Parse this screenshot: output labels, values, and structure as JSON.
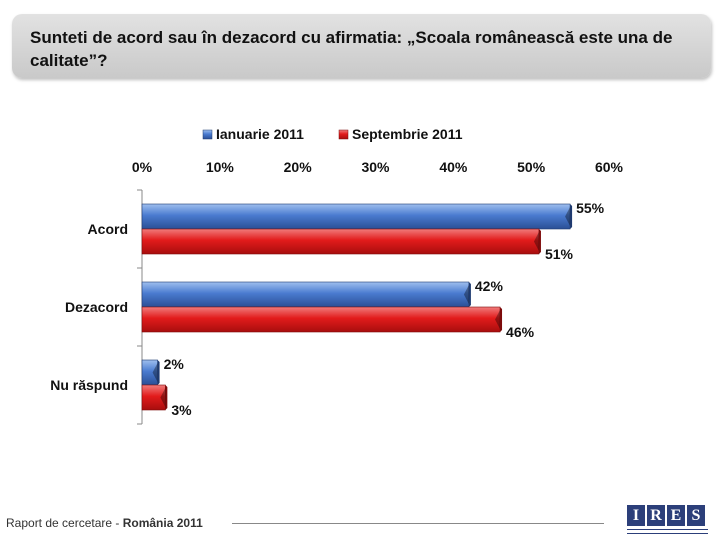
{
  "slide": {
    "title": "Sunteti de acord sau în dezacord cu afirmatia: „Scoala românească este una de calitate”?"
  },
  "chart_data": {
    "type": "bar",
    "orientation": "horizontal",
    "categories": [
      "Acord",
      "Dezacord",
      "Nu răspund"
    ],
    "series": [
      {
        "name": "Ianuarie 2011",
        "values": [
          55,
          42,
          2
        ],
        "labels": [
          "55%",
          "42%",
          "2%"
        ],
        "color": "#4472c4"
      },
      {
        "name": "Septembrie 2011",
        "values": [
          51,
          46,
          3
        ],
        "labels": [
          "51%",
          "46%",
          "3%"
        ],
        "color": "#e31d1d"
      }
    ],
    "xlim": [
      0,
      60
    ],
    "xticks": [
      "0%",
      "10%",
      "20%",
      "30%",
      "40%",
      "50%",
      "60%"
    ],
    "legend_position": "top",
    "grid": false
  },
  "footer": {
    "prefix": "Raport de cercetare - ",
    "report": "România 2011"
  },
  "logo": {
    "letters": [
      "I",
      "R",
      "E",
      "S"
    ],
    "color": "#2c3f7a"
  }
}
